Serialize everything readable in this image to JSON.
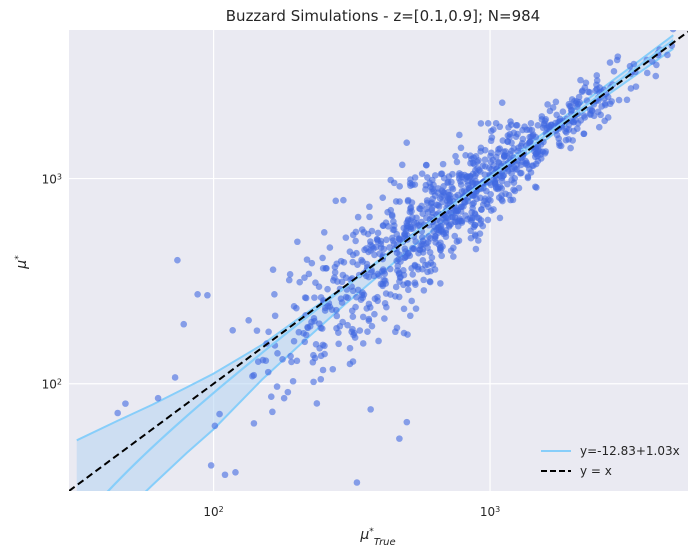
{
  "chart_data": {
    "type": "scatter",
    "title": "Buzzard Simulations - z=[0.1,0.9]; N=984",
    "xlabel": "μ*True",
    "ylabel": "μ*",
    "xscale": "log",
    "yscale": "log",
    "xlim": [
      30,
      5200
    ],
    "ylim": [
      30,
      5300
    ],
    "xticks": [
      {
        "value": 100,
        "label": "10²"
      },
      {
        "value": 1000,
        "label": "10³"
      }
    ],
    "yticks": [
      {
        "value": 100,
        "label": "10²"
      },
      {
        "value": 1000,
        "label": "10³"
      }
    ],
    "grid": true,
    "legend_position": "lower-right",
    "colors": {
      "points": "#4169e1",
      "fit_line": "#87cefa",
      "band_fill": "#b5d4f2",
      "identity_line": "#000000",
      "panel_bg": "#eaeaf2"
    },
    "series": [
      {
        "name": "y=-12.83+1.03x",
        "kind": "fit_line",
        "intercept": -12.83,
        "slope": 1.03,
        "x_range": [
          32,
          4600
        ]
      },
      {
        "name": "y = x",
        "kind": "identity_line"
      }
    ],
    "band": [
      {
        "x": 32,
        "lower": 15,
        "upper": 53
      },
      {
        "x": 45,
        "lower": 22,
        "upper": 66
      },
      {
        "x": 60,
        "lower": 32,
        "upper": 79
      },
      {
        "x": 80,
        "lower": 46,
        "upper": 96
      },
      {
        "x": 100,
        "lower": 60,
        "upper": 112
      },
      {
        "x": 150,
        "lower": 105,
        "upper": 155
      },
      {
        "x": 200,
        "lower": 150,
        "upper": 205
      },
      {
        "x": 300,
        "lower": 245,
        "upper": 300
      },
      {
        "x": 500,
        "lower": 440,
        "upper": 510
      },
      {
        "x": 1000,
        "lower": 960,
        "upper": 1050
      },
      {
        "x": 2000,
        "lower": 1950,
        "upper": 2160
      },
      {
        "x": 4600,
        "lower": 4300,
        "upper": 5000
      }
    ],
    "points_generator": {
      "count": 984,
      "seed": 7,
      "x_lognormal_mu_log10": 2.85,
      "x_lognormal_sd_log10": 0.32,
      "x_min": 38,
      "x_max": 4600,
      "scatter_sd_log10_low": 0.28,
      "scatter_sd_log10_high": 0.07
    },
    "extra_points": [
      {
        "x": 45,
        "y": 72
      },
      {
        "x": 48,
        "y": 80
      },
      {
        "x": 63,
        "y": 85
      },
      {
        "x": 74,
        "y": 400
      },
      {
        "x": 78,
        "y": 195
      },
      {
        "x": 95,
        "y": 270
      },
      {
        "x": 98,
        "y": 40
      },
      {
        "x": 110,
        "y": 36
      },
      {
        "x": 120,
        "y": 37
      },
      {
        "x": 180,
        "y": 85
      },
      {
        "x": 330,
        "y": 33
      },
      {
        "x": 470,
        "y": 54
      },
      {
        "x": 500,
        "y": 65
      },
      {
        "x": 370,
        "y": 75
      }
    ]
  }
}
